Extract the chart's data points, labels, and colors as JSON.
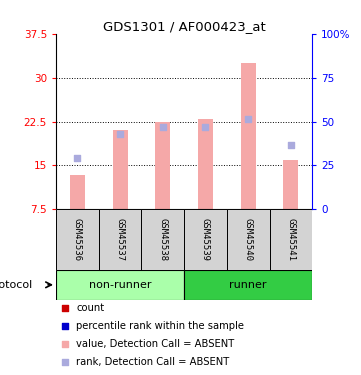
{
  "title": "GDS1301 / AF000423_at",
  "samples": [
    "GSM45536",
    "GSM45537",
    "GSM45538",
    "GSM45539",
    "GSM45540",
    "GSM45541"
  ],
  "bar_values": [
    13.3,
    21.0,
    22.5,
    23.0,
    32.5,
    16.0
  ],
  "rank_values": [
    16.2,
    20.3,
    21.5,
    21.5,
    23.0,
    18.5
  ],
  "bar_color": "#f5a8a8",
  "rank_color": "#aaaadd",
  "left_ylim": [
    7.5,
    37.5
  ],
  "left_yticks": [
    7.5,
    15.0,
    22.5,
    30.0,
    37.5
  ],
  "left_yticklabels": [
    "7.5",
    "15",
    "22.5",
    "30",
    "37.5"
  ],
  "right_ylim": [
    0,
    100
  ],
  "right_yticks": [
    0,
    25,
    50,
    75,
    100
  ],
  "right_yticklabels": [
    "0",
    "25",
    "50",
    "75",
    "100%"
  ],
  "groups": [
    {
      "label": "non-runner",
      "start": 0,
      "end": 3,
      "color": "#aaffaa"
    },
    {
      "label": "runner",
      "start": 3,
      "end": 6,
      "color": "#33cc44"
    }
  ],
  "protocol_label": "protocol",
  "legend_items": [
    {
      "color": "#cc0000",
      "label": "count"
    },
    {
      "color": "#0000cc",
      "label": "percentile rank within the sample"
    },
    {
      "color": "#f5a8a8",
      "label": "value, Detection Call = ABSENT"
    },
    {
      "color": "#aaaadd",
      "label": "rank, Detection Call = ABSENT"
    }
  ],
  "gridline_color": "black",
  "gridline_style": ":",
  "sample_box_color": "#d3d3d3",
  "bar_width": 0.35,
  "rank_marker_size": 18
}
